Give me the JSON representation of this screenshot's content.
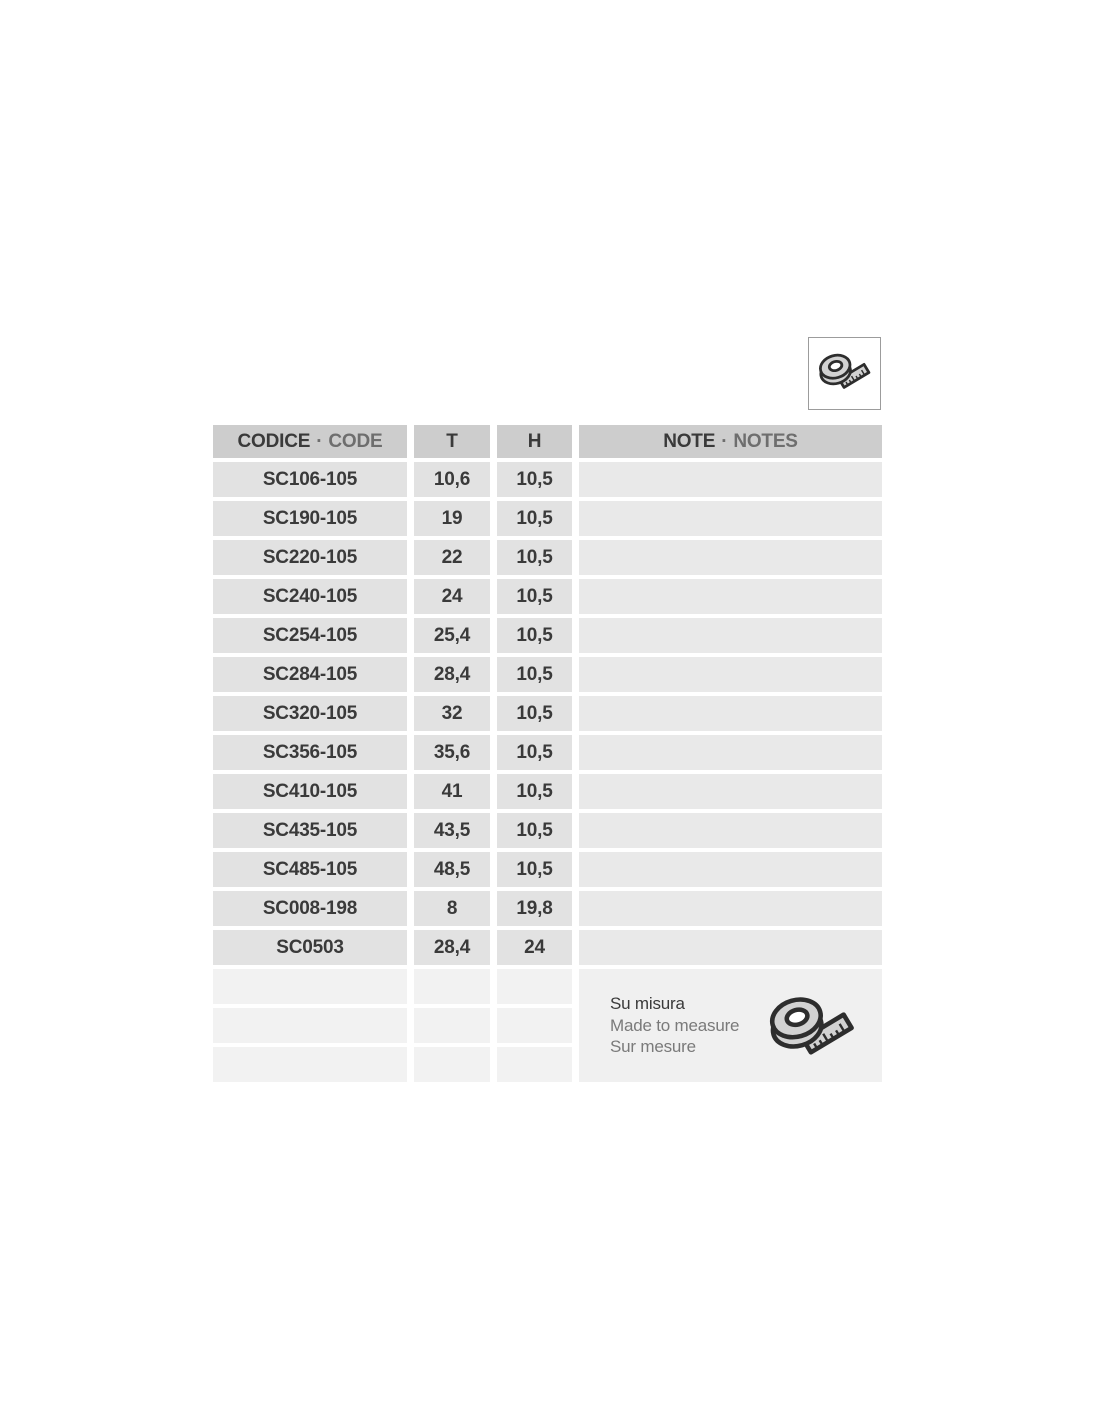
{
  "table": {
    "headers": {
      "code": {
        "primary": "CODICE",
        "separator": "·",
        "secondary": "CODE"
      },
      "t": {
        "primary": "T"
      },
      "h": {
        "primary": "H"
      },
      "notes": {
        "primary": "NOTE",
        "separator": "·",
        "secondary": "NOTES"
      }
    },
    "rows": [
      {
        "code": "SC106-105",
        "t": "10,6",
        "h": "10,5",
        "note": ""
      },
      {
        "code": "SC190-105",
        "t": "19",
        "h": "10,5",
        "note": ""
      },
      {
        "code": "SC220-105",
        "t": "22",
        "h": "10,5",
        "note": ""
      },
      {
        "code": "SC240-105",
        "t": "24",
        "h": "10,5",
        "note": ""
      },
      {
        "code": "SC254-105",
        "t": "25,4",
        "h": "10,5",
        "note": ""
      },
      {
        "code": "SC284-105",
        "t": "28,4",
        "h": "10,5",
        "note": ""
      },
      {
        "code": "SC320-105",
        "t": "32",
        "h": "10,5",
        "note": ""
      },
      {
        "code": "SC356-105",
        "t": "35,6",
        "h": "10,5",
        "note": ""
      },
      {
        "code": "SC410-105",
        "t": "41",
        "h": "10,5",
        "note": ""
      },
      {
        "code": "SC435-105",
        "t": "43,5",
        "h": "10,5",
        "note": ""
      },
      {
        "code": "SC485-105",
        "t": "48,5",
        "h": "10,5",
        "note": ""
      },
      {
        "code": "SC008-198",
        "t": "8",
        "h": "19,8",
        "note": ""
      },
      {
        "code": "SC0503",
        "t": "28,4",
        "h": "24",
        "note": ""
      }
    ],
    "empty_rows": 3,
    "made_to_measure": {
      "line_it": "Su misura",
      "line_en": "Made to measure",
      "line_fr": "Sur mesure"
    }
  },
  "icons": {
    "top_right": "tape-measure-icon",
    "made_to_measure": "tape-measure-icon"
  },
  "colors": {
    "header_bg": "#cdcdcd",
    "row_bg": "#e2e2e2",
    "note_bg": "#e9e9e9",
    "empty_row_bg": "#f2f2f2",
    "made_to_measure_bg": "#f0f0f0",
    "text_primary": "#3a3a3a",
    "text_secondary": "#6e6e6e",
    "icon_fill": "#d2d2d2",
    "icon_stroke": "#2d2d2d",
    "icon_box_border": "#9c9c9c"
  }
}
